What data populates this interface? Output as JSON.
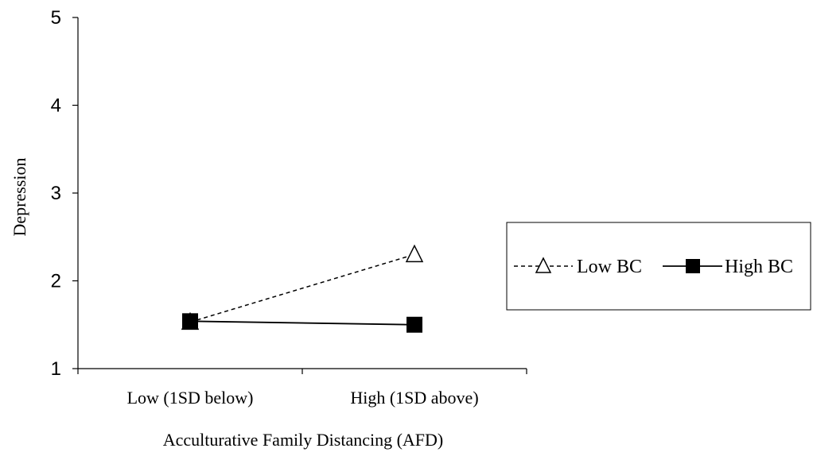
{
  "chart_data": {
    "type": "line",
    "categories": [
      "Low (1SD below)",
      "High (1SD above)"
    ],
    "series": [
      {
        "name": "Low BC",
        "values": [
          1.53,
          2.3
        ],
        "line_style": "dashed",
        "marker": "open-triangle",
        "color": "#000000"
      },
      {
        "name": "High BC",
        "values": [
          1.54,
          1.5
        ],
        "line_style": "solid",
        "marker": "filled-square",
        "color": "#000000"
      }
    ],
    "title": "",
    "xlabel": "Acculturative Family Distancing (AFD)",
    "ylabel": "Depression",
    "ylim": [
      1,
      5
    ],
    "yticks": [
      "1",
      "2",
      "3",
      "4",
      "5"
    ],
    "grid": false,
    "legend_position": "right",
    "legend_entries": [
      "Low BC",
      "High BC"
    ]
  }
}
